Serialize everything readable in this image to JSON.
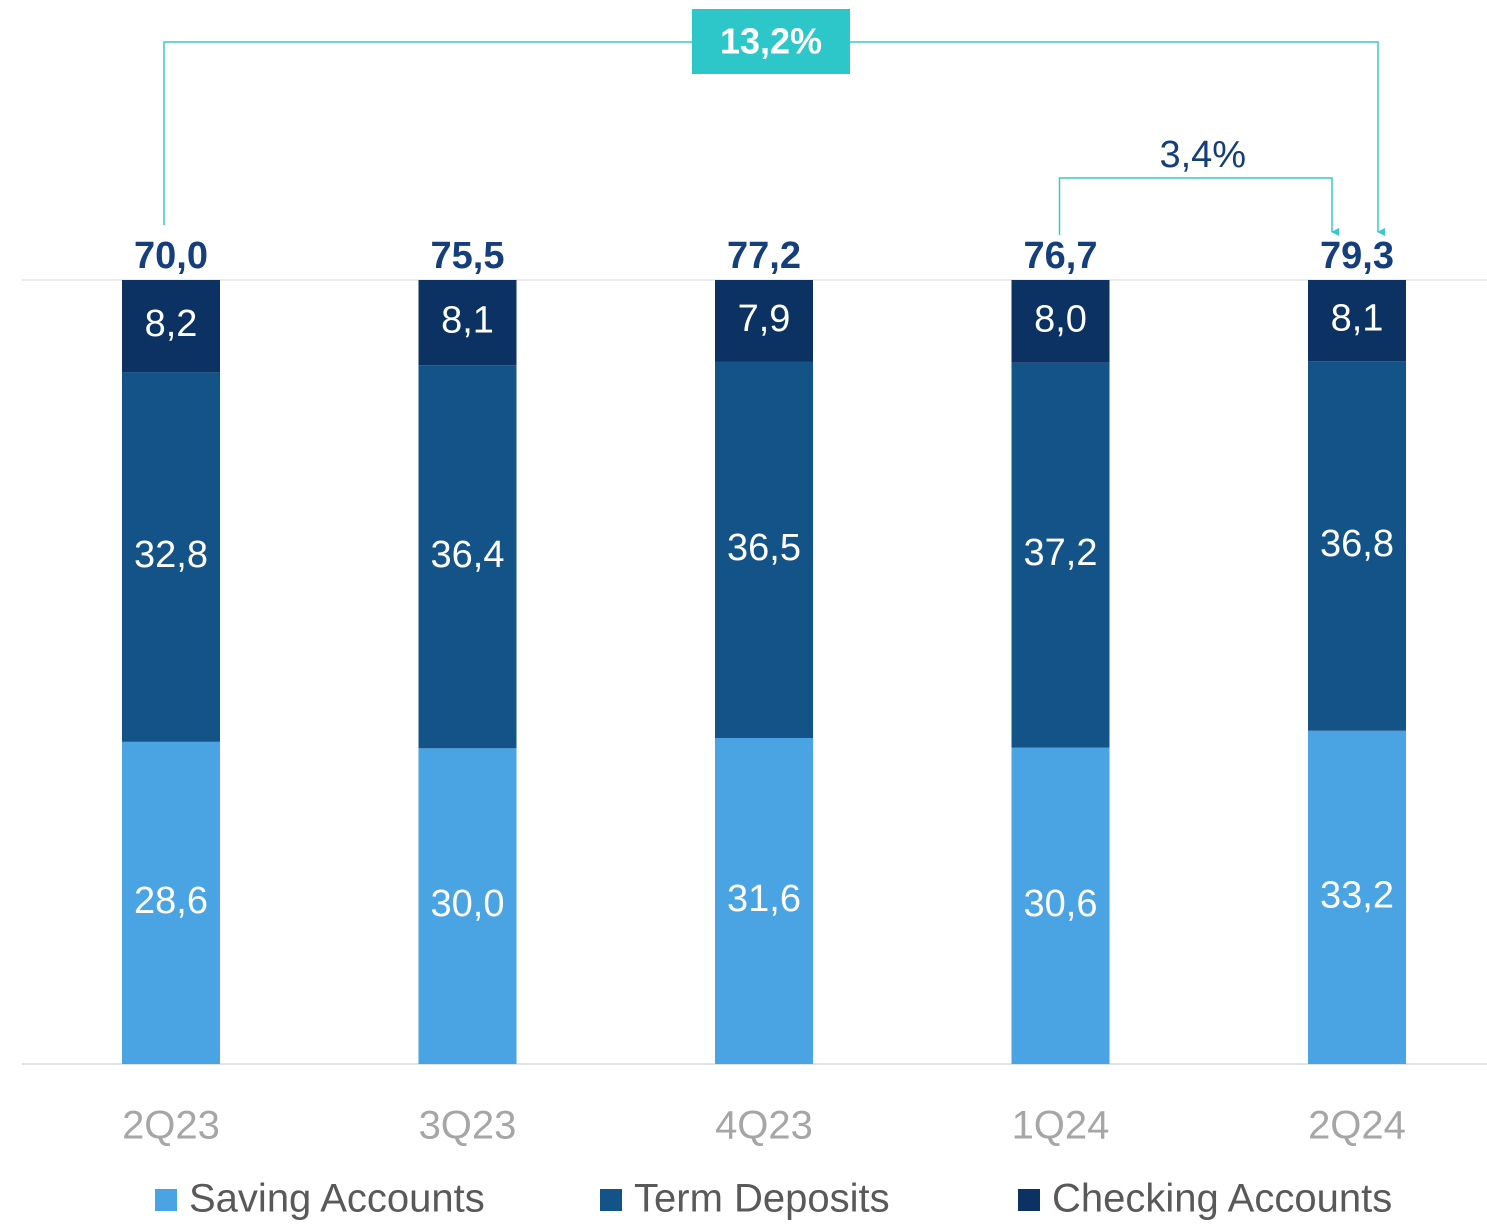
{
  "chart_data": {
    "type": "bar",
    "stacking": "normalized",
    "categories": [
      "2Q23",
      "3Q23",
      "4Q23",
      "1Q24",
      "2Q24"
    ],
    "series": [
      {
        "name": "Saving Accounts",
        "color": "#4aa3e3",
        "values": [
          28.6,
          30.0,
          31.6,
          30.6,
          33.2
        ],
        "value_labels": [
          "28,6",
          "30,0",
          "31,6",
          "30,6",
          "33,2"
        ]
      },
      {
        "name": "Term Deposits",
        "color": "#145387",
        "values": [
          32.8,
          36.4,
          36.5,
          37.2,
          36.8
        ],
        "value_labels": [
          "32,8",
          "36,4",
          "36,5",
          "37,2",
          "36,8"
        ]
      },
      {
        "name": "Checking Accounts",
        "color": "#0b3262",
        "values": [
          8.2,
          8.1,
          7.9,
          8.0,
          8.1
        ],
        "value_labels": [
          "8,2",
          "8,1",
          "7,9",
          "8,0",
          "8,1"
        ]
      }
    ],
    "totals": [
      70.0,
      75.5,
      77.2,
      76.7,
      79.3
    ],
    "totals_labels": [
      "70,0",
      "75,5",
      "77,2",
      "76,7",
      "79,3"
    ],
    "annotations": [
      {
        "label": "13,2%",
        "from": "2Q23",
        "to": "2Q24",
        "highlight": true
      },
      {
        "label": "3,4%",
        "from": "1Q24",
        "to": "2Q24",
        "highlight": false
      }
    ]
  }
}
